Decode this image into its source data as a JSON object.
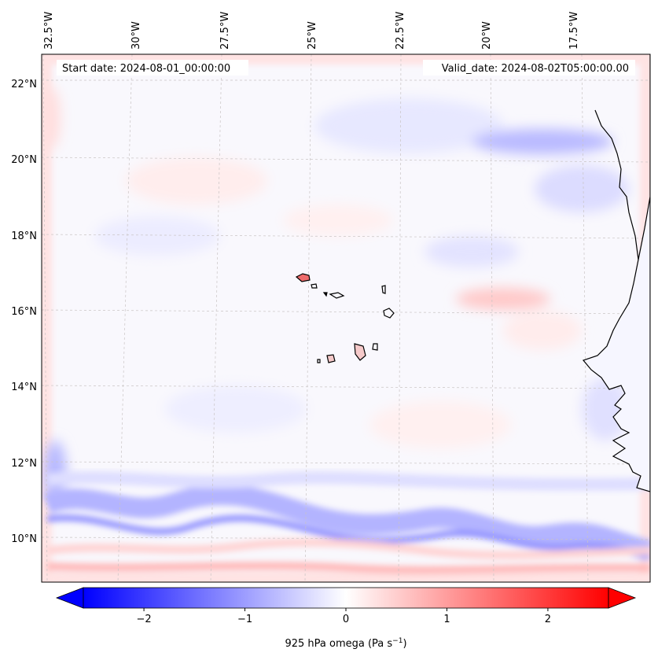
{
  "map": {
    "start_date": "Start date: 2024-08-01_00:00:00",
    "valid_date": "Valid_date: 2024-08-02T05:00:00.00",
    "lon_labels": [
      "32.5°W",
      "30°W",
      "27.5°W",
      "25°W",
      "22.5°W",
      "20°W",
      "17.5°W"
    ],
    "lat_labels": [
      "22°N",
      "20°N",
      "18°N",
      "16°N",
      "14°N",
      "12°N",
      "10°N"
    ]
  },
  "colorbar": {
    "label": "925 hPa omega (Pa s",
    "label_sup": "−1",
    "label_close": ")",
    "ticks": [
      "−2",
      "−1",
      "0",
      "1",
      "2"
    ],
    "range": [
      -2.6,
      2.6
    ],
    "cmap": "bwr",
    "colors": {
      "negative": "#0000ff",
      "zero": "#ffffff",
      "positive": "#ff0000"
    }
  },
  "colors": {
    "coast": "#000000",
    "grid": "#bbbbbb"
  }
}
